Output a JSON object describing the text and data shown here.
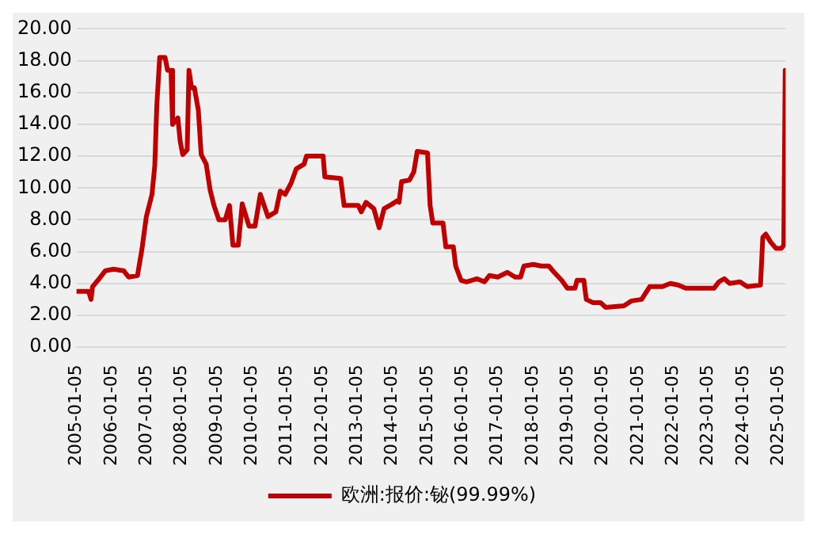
{
  "chart_data": {
    "type": "line",
    "x": [
      "2005-01-05",
      "2005-05-10",
      "2005-06-05",
      "2005-06-20",
      "2005-08-15",
      "2005-11-01",
      "2006-01-25",
      "2006-05-10",
      "2006-07-01",
      "2006-10-01",
      "2006-11-15",
      "2007-01-01",
      "2007-03-01",
      "2007-03-30",
      "2007-04-20",
      "2007-05-20",
      "2007-07-15",
      "2007-08-10",
      "2007-09-15",
      "2007-10-01",
      "2007-11-25",
      "2007-12-20",
      "2008-01-15",
      "2008-03-01",
      "2008-03-20",
      "2008-04-15",
      "2008-05-15",
      "2008-06-25",
      "2008-07-25",
      "2008-09-15",
      "2008-10-25",
      "2008-12-05",
      "2009-01-25",
      "2009-04-01",
      "2009-05-15",
      "2009-06-20",
      "2009-08-15",
      "2009-09-25",
      "2009-12-05",
      "2010-02-05",
      "2010-04-01",
      "2010-06-20",
      "2010-09-10",
      "2010-10-25",
      "2010-12-15",
      "2011-02-15",
      "2011-04-10",
      "2011-07-01",
      "2011-07-25",
      "2012-01-15",
      "2012-02-01",
      "2012-07-15",
      "2012-08-20",
      "2013-01-15",
      "2013-02-15",
      "2013-04-05",
      "2013-06-25",
      "2013-08-20",
      "2013-10-10",
      "2014-01-05",
      "2014-02-25",
      "2014-03-15",
      "2014-04-10",
      "2014-07-01",
      "2014-08-15",
      "2014-09-20",
      "2015-01-05",
      "2015-02-01",
      "2015-03-01",
      "2015-06-15",
      "2015-07-15",
      "2015-10-01",
      "2015-10-25",
      "2015-12-20",
      "2016-02-15",
      "2016-06-01",
      "2016-08-20",
      "2016-10-10",
      "2017-01-05",
      "2017-04-15",
      "2017-07-05",
      "2017-08-30",
      "2017-10-05",
      "2018-01-10",
      "2018-04-01",
      "2018-06-20",
      "2018-08-15",
      "2018-11-01",
      "2018-12-30",
      "2019-03-20",
      "2019-04-10",
      "2019-06-20",
      "2019-07-15",
      "2019-09-20",
      "2019-12-10",
      "2020-02-01",
      "2020-08-10",
      "2020-10-25",
      "2021-02-10",
      "2021-05-05",
      "2021-09-15",
      "2021-12-05",
      "2022-02-25",
      "2022-05-15",
      "2022-09-25",
      "2023-03-05",
      "2023-04-25",
      "2023-06-20",
      "2023-08-15",
      "2023-11-30",
      "2024-02-15",
      "2024-07-01",
      "2024-07-25",
      "2024-08-25",
      "2024-10-15",
      "2024-12-10",
      "2025-02-01",
      "2025-02-28",
      "2025-03-15"
    ],
    "series": [
      {
        "name": "欧洲:报价:铋(99.99%)",
        "color": "#c00000",
        "values": [
          3.5,
          3.5,
          3.0,
          3.8,
          4.2,
          4.8,
          4.9,
          4.8,
          4.4,
          4.5,
          6.1,
          8.2,
          9.6,
          11.4,
          15.2,
          18.2,
          18.2,
          17.4,
          17.4,
          14.0,
          14.4,
          12.9,
          12.1,
          12.4,
          17.4,
          16.3,
          16.3,
          14.9,
          12.1,
          11.5,
          9.9,
          8.9,
          8.0,
          8.0,
          8.9,
          6.4,
          6.4,
          9.0,
          7.6,
          7.6,
          9.6,
          8.2,
          8.5,
          9.8,
          9.6,
          10.3,
          11.2,
          11.5,
          12.0,
          12.0,
          10.7,
          10.6,
          8.9,
          8.9,
          8.5,
          9.1,
          8.7,
          7.5,
          8.7,
          9.0,
          9.2,
          9.1,
          10.4,
          10.5,
          11.0,
          12.3,
          12.2,
          8.9,
          7.8,
          7.8,
          6.3,
          6.3,
          5.1,
          4.2,
          4.1,
          4.3,
          4.1,
          4.5,
          4.4,
          4.7,
          4.4,
          4.4,
          5.1,
          5.2,
          5.1,
          5.1,
          4.7,
          4.2,
          3.7,
          3.7,
          4.2,
          4.2,
          3.0,
          2.8,
          2.8,
          2.5,
          2.6,
          2.9,
          3.0,
          3.8,
          3.8,
          4.0,
          3.9,
          3.7,
          3.7,
          3.7,
          4.1,
          4.3,
          4.0,
          4.1,
          3.8,
          3.9,
          6.9,
          7.1,
          6.6,
          6.2,
          6.2,
          6.4,
          17.4
        ]
      }
    ],
    "xlim": [
      "2005-01-05",
      "2025-03-20"
    ],
    "xticks": [
      "2005-01-05",
      "2006-01-05",
      "2007-01-05",
      "2008-01-05",
      "2009-01-05",
      "2010-01-05",
      "2011-01-05",
      "2012-01-05",
      "2013-01-05",
      "2014-01-05",
      "2015-01-05",
      "2016-01-05",
      "2017-01-05",
      "2018-01-05",
      "2019-01-05",
      "2020-01-05",
      "2021-01-05",
      "2022-01-05",
      "2023-01-05",
      "2024-01-05",
      "2025-01-05"
    ],
    "ylim": [
      0,
      20
    ],
    "yticks": [
      {
        "value": 0,
        "label": "0.00"
      },
      {
        "value": 2,
        "label": "2.00"
      },
      {
        "value": 4,
        "label": "4.00"
      },
      {
        "value": 6,
        "label": "6.00"
      },
      {
        "value": 8,
        "label": "8.00"
      },
      {
        "value": 10,
        "label": "10.00"
      },
      {
        "value": 12,
        "label": "12.00"
      },
      {
        "value": 14,
        "label": "14.00"
      },
      {
        "value": 16,
        "label": "16.00"
      },
      {
        "value": 18,
        "label": "18.00"
      },
      {
        "value": 20,
        "label": "20.00"
      }
    ],
    "grid": "y",
    "legend": "bottom",
    "marker": "none",
    "line_style": "solid"
  }
}
